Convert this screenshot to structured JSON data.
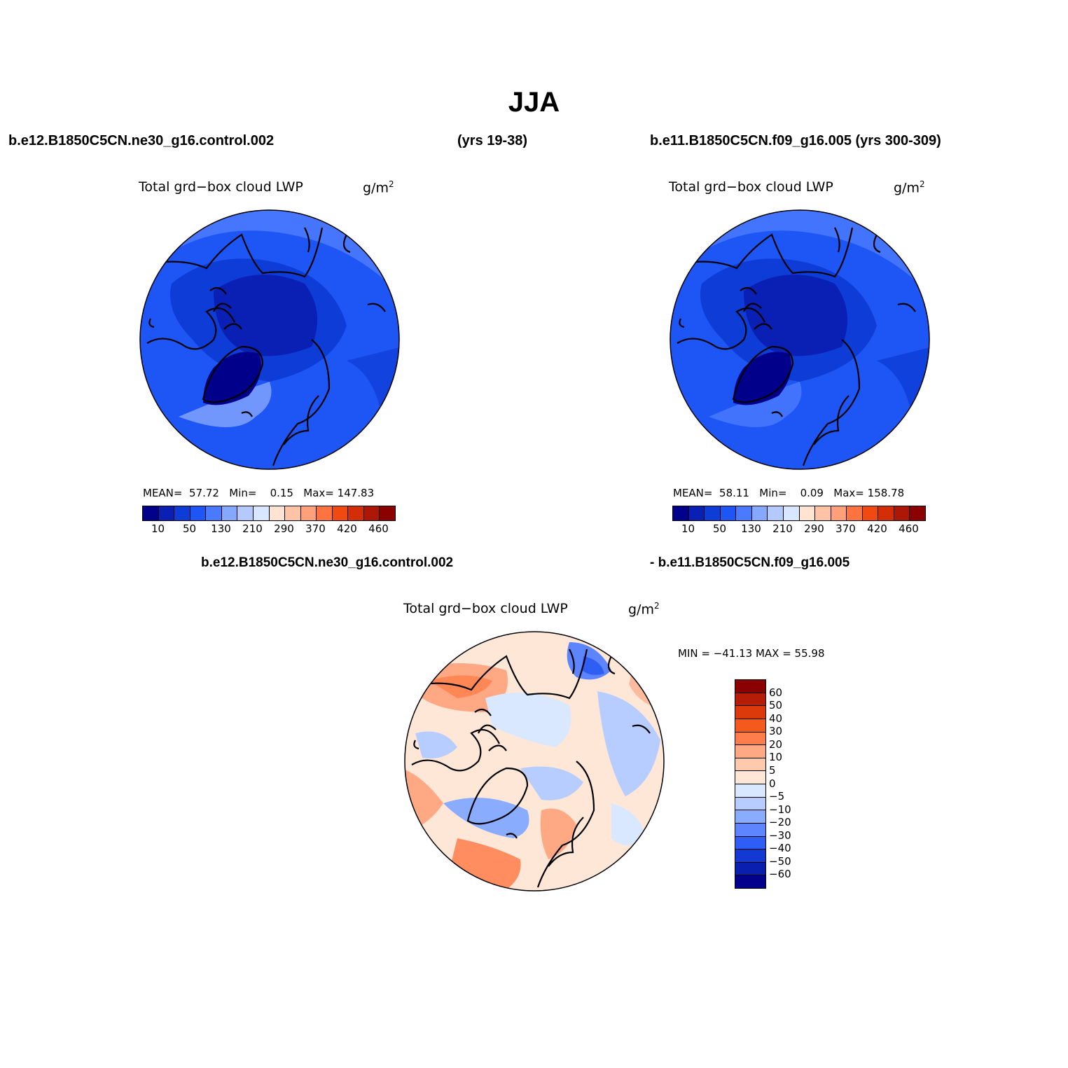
{
  "figure": {
    "title": "JJA",
    "header_left": "b.e12.B1850C5CN.ne30_g16.control.002",
    "header_years": "(yrs 19-38)",
    "header_right": "b.e11.B1850C5CN.f09_g16.005 (yrs 300-309)",
    "diff_label_left": "b.e12.B1850C5CN.ne30_g16.control.002",
    "diff_label_right": "- b.e11.B1850C5CN.f09_g16.005"
  },
  "panels": [
    {
      "variable": "Total grd−box cloud LWP",
      "units": "g/m",
      "units_sup": "2",
      "mean_label": "MEAN=",
      "mean": "57.72",
      "min_label": "Min=",
      "min": "0.15",
      "max_label": "Max=",
      "max": "147.83"
    },
    {
      "variable": "Total grd−box cloud LWP",
      "units": "g/m",
      "units_sup": "2",
      "mean_label": "MEAN=",
      "mean": "58.11",
      "min_label": "Min=",
      "min": "0.09",
      "max_label": "Max=",
      "max": "158.78"
    },
    {
      "variable": "Total grd−box cloud LWP",
      "units": "g/m",
      "units_sup": "2",
      "minmax": "MIN = −41.13 MAX =   55.98"
    }
  ],
  "colorbar_main": {
    "colors": [
      "#00008b",
      "#0a1fb3",
      "#0d3cd6",
      "#1e55f5",
      "#4a7aff",
      "#86a8ff",
      "#b4c9ff",
      "#d8e6ff",
      "#ffe4d2",
      "#ffc4a6",
      "#ffa07a",
      "#ff7340",
      "#f04a12",
      "#d42e08",
      "#ae1606",
      "#8b0000"
    ],
    "tick_labels": [
      "10",
      "50",
      "130",
      "210",
      "290",
      "370",
      "420",
      "460"
    ]
  },
  "colorbar_diff": {
    "colors": [
      "#8b0000",
      "#b51d06",
      "#dc3a0b",
      "#f35a1c",
      "#ff7d4a",
      "#ffa884",
      "#ffc9ac",
      "#ffe7d8",
      "#d9e8ff",
      "#b7cdff",
      "#8aacff",
      "#5c85ff",
      "#2f5ef5",
      "#1338d4",
      "#0a1fb0",
      "#00008b"
    ],
    "tick_labels": [
      "60",
      "50",
      "40",
      "30",
      "20",
      "10",
      "5",
      "0",
      "−5",
      "−10",
      "−20",
      "−30",
      "−40",
      "−50",
      "−60"
    ]
  },
  "maps": {
    "projection": "north-polar stereographic",
    "coastline_color": "#000000"
  }
}
